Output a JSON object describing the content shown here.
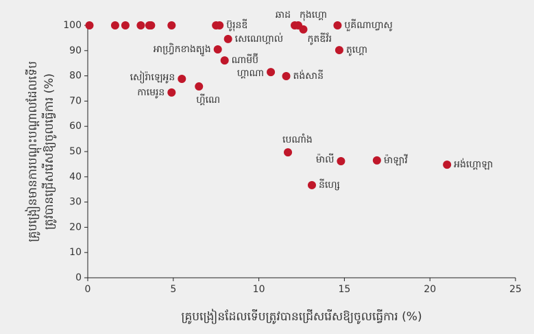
{
  "chart_data": {
    "type": "scatter",
    "x_label": "គ្រូបង្រៀនដែលទើបត្រូវបានជ្រើសរើសឱ្យចូលធ្វើការ (%)",
    "y_label": [
      "គ្រូបង្រៀនមានការបណ្តុះបណ្តាលដែលទើប",
      "ត្រូវបានជ្រើសរើសឱ្យចូលធ្វើការ (%)"
    ],
    "color": "#c0172a",
    "x": [
      0.1,
      1.6,
      2.2,
      3.1,
      3.6,
      3.7,
      4.9,
      7.5,
      7.7,
      12.1,
      12.3,
      12.6,
      14.6,
      8.2,
      7.6,
      14.7,
      8.0,
      10.7,
      11.6,
      5.5,
      6.5,
      4.9,
      11.7,
      14.8,
      16.9,
      21.0,
      13.1
    ],
    "values": [
      100,
      100,
      100,
      100,
      100,
      100,
      100,
      100,
      100,
      100,
      100,
      98.4,
      100,
      94.6,
      90.5,
      90.2,
      86.1,
      81.5,
      79.9,
      78.8,
      75.8,
      73.4,
      49.7,
      46.2,
      46.5,
      44.8,
      36.7
    ],
    "labels": [
      null,
      null,
      null,
      null,
      null,
      null,
      null,
      null,
      "ប៊ូរុនឌី",
      "ឆាដ",
      "កុងហ្គោ",
      "កូតឌីវ័រ",
      "បួគីណាហ្វាសូ",
      "សេណេហ្គាល់",
      "អាហ្វ្រិកខាងត្បូង",
      "តូហ្គោ",
      "ណាមីប៊ី",
      "ហ្គាណា",
      "តង់សានី",
      "សៀរ៉ាឡេអូន",
      "ហ្គីណេ",
      "កាមេរូន",
      "បេណាំង",
      "ម៉ាលី",
      "ម៉ាឡាវី",
      "អង់ហ្គោឡា",
      "នីហ្សេ"
    ],
    "xlim": [
      0,
      25
    ],
    "xticks": [
      0,
      5,
      10,
      15,
      20,
      25
    ],
    "ylim": [
      0,
      100
    ],
    "yticks": [
      0,
      10,
      20,
      30,
      40,
      50,
      60,
      70,
      80,
      90,
      100
    ]
  }
}
